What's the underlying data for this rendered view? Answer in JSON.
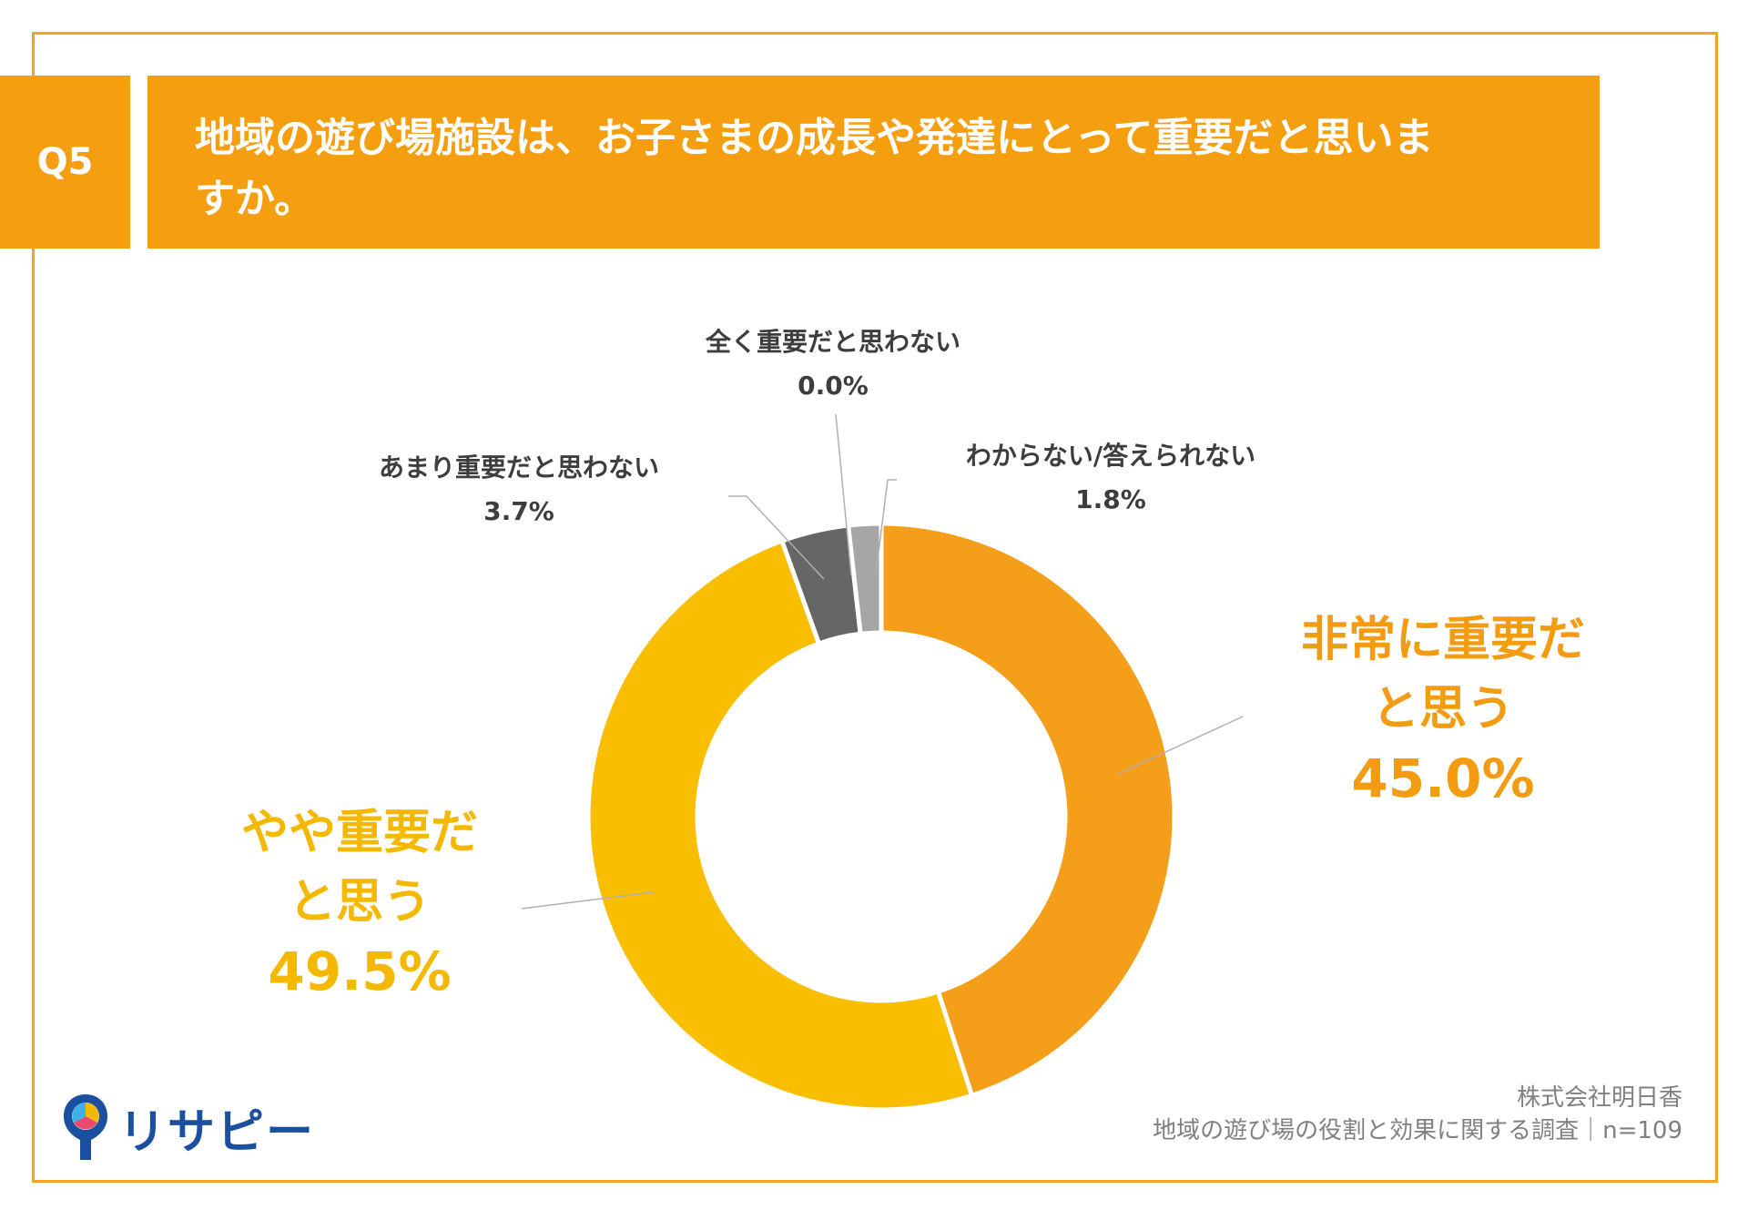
{
  "header": {
    "badge": "Q5",
    "question": "地域の遊び場施設は、お子さまの成長や発達にとって重要だと思いますか。"
  },
  "colors": {
    "accent": "#f59e10",
    "very_important": "#f59e1a",
    "somewhat_important": "#f9be00",
    "not_very_important": "#666666",
    "not_important_at_all": "#888888",
    "dont_know": "#a6a6a6"
  },
  "chart_data": {
    "type": "pie",
    "style": "donut",
    "title": "地域の遊び場施設は、お子さまの成長や発達にとって重要だと思いますか。",
    "slices": [
      {
        "label_line1": "非常に重要だ",
        "label_line2": "と思う",
        "label": "非常に重要だと思う",
        "value": 45.0,
        "value_text": "45.0%"
      },
      {
        "label_line1": "やや重要だ",
        "label_line2": "と思う",
        "label": "やや重要だと思う",
        "value": 49.5,
        "value_text": "49.5%"
      },
      {
        "label": "あまり重要だと思わない",
        "value": 3.7,
        "value_text": "3.7%"
      },
      {
        "label": "全く重要だと思わない",
        "value": 0.0,
        "value_text": "0.0%"
      },
      {
        "label": "わからない/答えられない",
        "value": 1.8,
        "value_text": "1.8%"
      }
    ]
  },
  "footer": {
    "company": "株式会社明日香",
    "survey": "地域の遊び場の役割と効果に関する調査｜n=109",
    "logo_text": "リサピー"
  }
}
